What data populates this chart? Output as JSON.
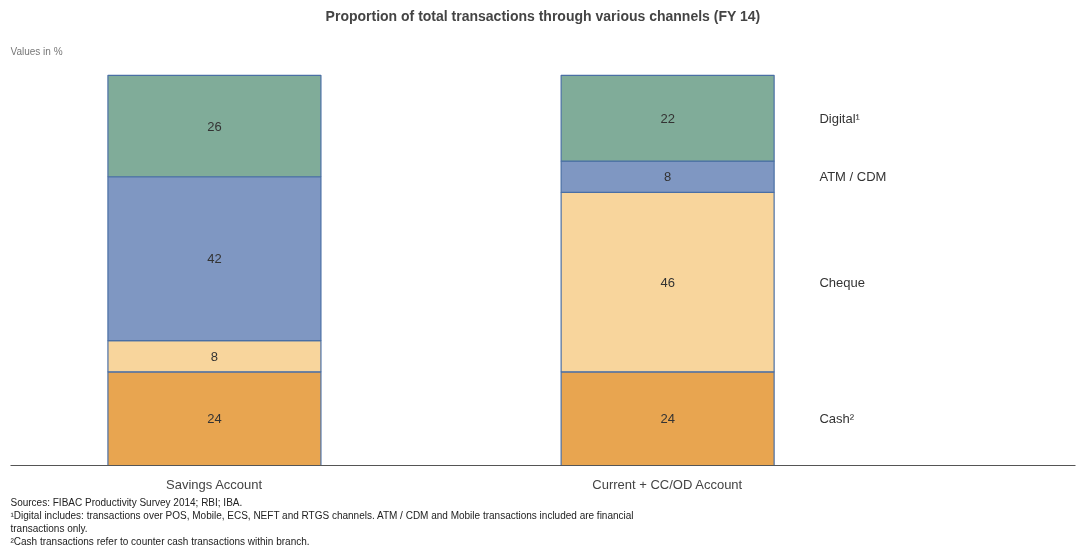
{
  "chart_data": {
    "type": "bar",
    "stacked": true,
    "data_labels": true,
    "title": "Proportion of total transactions through various channels (FY 14)",
    "ylabel": "Values in %",
    "categories": [
      "Savings Account",
      "Current + CC/OD Account"
    ],
    "series": [
      {
        "name": "Cash²",
        "color": "#e8a550",
        "values": [
          24,
          24
        ]
      },
      {
        "name": "Cheque",
        "color": "#f8d59c",
        "values": [
          8,
          46
        ]
      },
      {
        "name": "ATM / CDM",
        "color": "#7f97c2",
        "values": [
          42,
          8
        ]
      },
      {
        "name": "Digital¹",
        "color": "#80ac99",
        "values": [
          26,
          22
        ]
      }
    ],
    "annotations": [
      "Sources: FIBAC Productivity Survey 2014; RBI; IBA.",
      "¹Digital includes: transactions over POS, Mobile, ECS, NEFT and RTGS channels. ATM / CDM and Mobile transactions included are financial",
      "transactions only.",
      "²Cash transactions refer to counter cash transactions within branch."
    ]
  }
}
